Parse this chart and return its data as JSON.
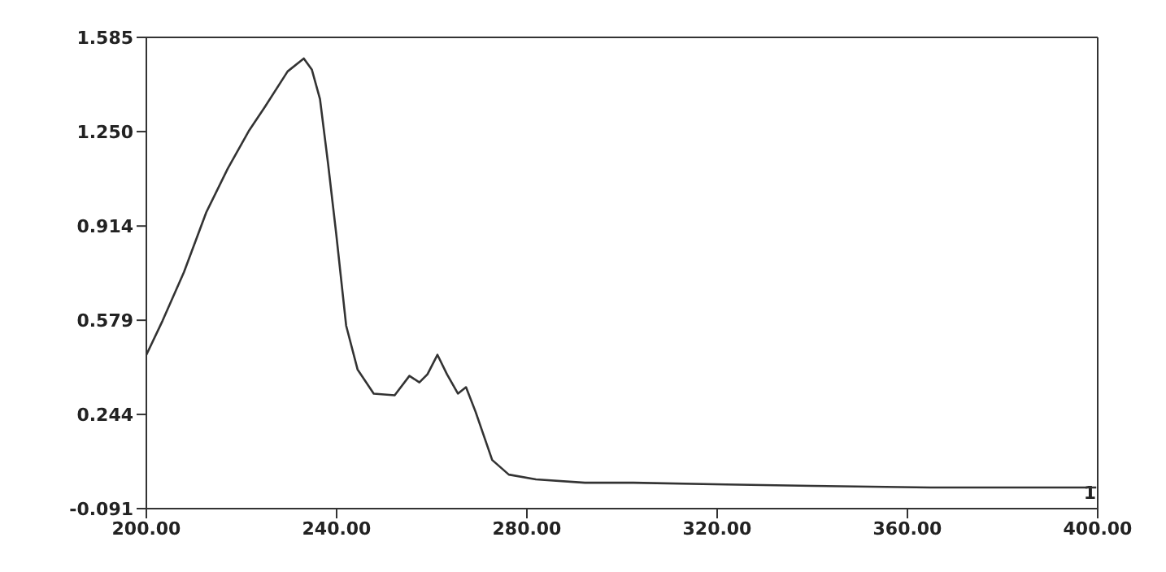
{
  "chart_data": {
    "type": "line",
    "x": [
      200,
      203.4,
      207.9,
      212.6,
      217.1,
      221.5,
      224.9,
      229.7,
      233.1,
      234.8,
      236.5,
      238.2,
      239.9,
      242,
      244.4,
      247.8,
      252.2,
      255.3,
      257.4,
      259.1,
      261.2,
      263.2,
      265.5,
      267.2,
      269.2,
      272.7,
      276.2,
      281.9,
      292.2,
      302.4,
      321.8,
      340,
      364.8,
      380,
      399.7
    ],
    "series": [
      {
        "color": "#333333",
        "values": [
          0.456,
          0.577,
          0.75,
          0.963,
          1.118,
          1.251,
          1.337,
          1.464,
          1.51,
          1.47,
          1.366,
          1.136,
          0.888,
          0.56,
          0.404,
          0.318,
          0.312,
          0.381,
          0.358,
          0.387,
          0.456,
          0.387,
          0.318,
          0.341,
          0.254,
          0.082,
          0.03,
          0.013,
          0.001,
          0.001,
          -0.005,
          -0.01,
          -0.016,
          -0.016,
          -0.016
        ]
      }
    ],
    "xlim": [
      200,
      400
    ],
    "xticks": [
      {
        "value": 200,
        "label": "200.00"
      },
      {
        "value": 240,
        "label": "240.00"
      },
      {
        "value": 280,
        "label": "280.00"
      },
      {
        "value": 320,
        "label": "320.00"
      },
      {
        "value": 360,
        "label": "360.00"
      },
      {
        "value": 400,
        "label": "400.00"
      }
    ],
    "ylim": [
      -0.091,
      1.585
    ],
    "yticks": [
      {
        "value": -0.091,
        "label": "-0.091"
      },
      {
        "value": 0.244,
        "label": "0.244"
      },
      {
        "value": 0.579,
        "label": "0.579"
      },
      {
        "value": 0.914,
        "label": "0.914"
      },
      {
        "value": 1.25,
        "label": "1.250"
      },
      {
        "value": 1.585,
        "label": "1.585"
      }
    ],
    "annotations": [
      "1"
    ],
    "marker": "none",
    "line_style": "solid"
  }
}
